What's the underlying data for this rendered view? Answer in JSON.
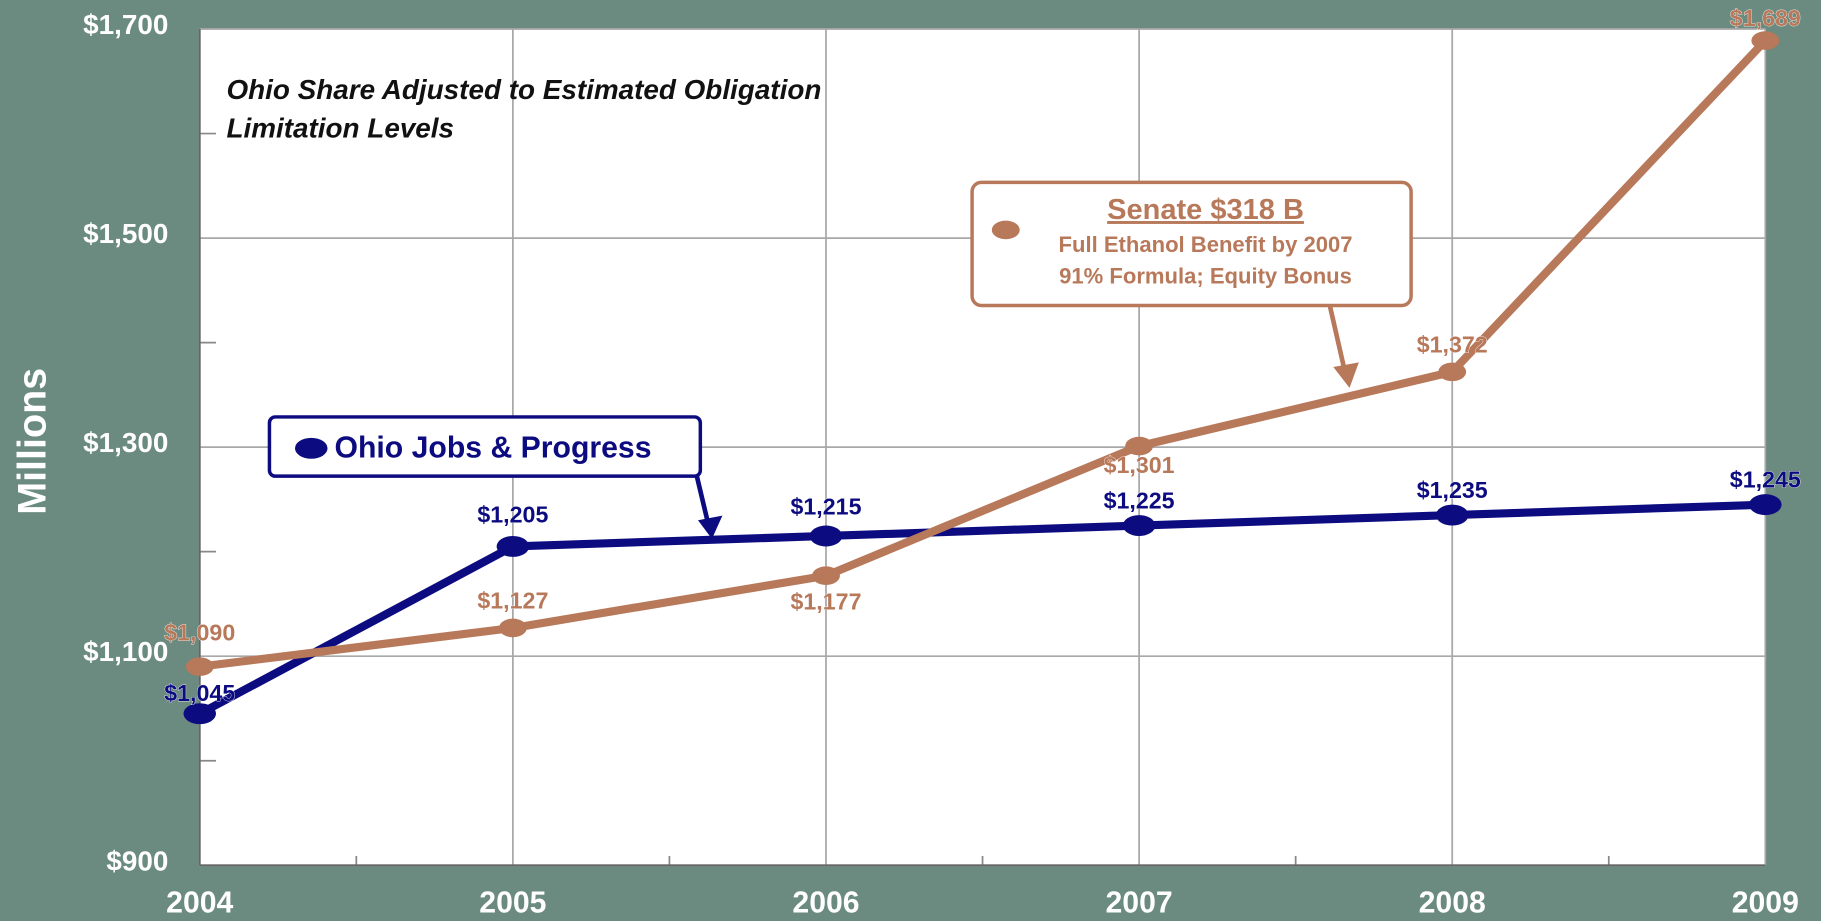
{
  "chart_data": {
    "type": "line",
    "title_lines": [
      "Ohio Share Adjusted to Estimated Obligation",
      "Limitation Levels"
    ],
    "ylabel": "Millions",
    "x": [
      2004,
      2005,
      2006,
      2007,
      2008,
      2009
    ],
    "xlim": [
      2004,
      2009
    ],
    "xticks": [
      2004,
      2005,
      2006,
      2007,
      2008,
      2009
    ],
    "ylim": [
      900,
      1700
    ],
    "yticks": [
      {
        "value": 900,
        "label": "$900"
      },
      {
        "value": 1100,
        "label": "$1,100"
      },
      {
        "value": 1300,
        "label": "$1,300"
      },
      {
        "value": 1500,
        "label": "$1,500"
      },
      {
        "value": 1700,
        "label": "$1,700"
      }
    ],
    "grid": true,
    "series": [
      {
        "name": "Ohio Jobs & Progress",
        "color": "#0c0c80",
        "values": [
          1045,
          1205,
          1215,
          1225,
          1235,
          1245
        ],
        "value_labels": [
          "$1,045",
          "$1,205",
          "$1,215",
          "$1,225",
          "$1,235",
          "$1,245"
        ]
      },
      {
        "name": "Senate $318 B",
        "color": "#b8785a",
        "values": [
          1090,
          1127,
          1177,
          1301,
          1372,
          1689
        ],
        "value_labels": [
          "$1,090",
          "$1,127",
          "$1,177",
          "$1,301",
          "$1,372",
          "$1,689"
        ],
        "notes": [
          "Full Ethanol Benefit by 2007",
          "91% Formula; Equity Bonus"
        ]
      }
    ]
  }
}
